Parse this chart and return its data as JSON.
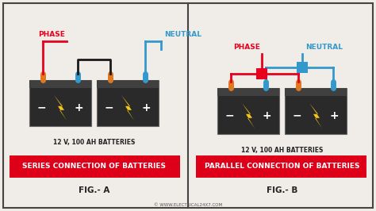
{
  "bg_color": "#f0ede8",
  "border_color": "#444444",
  "battery_color": "#2a2a2a",
  "battery_top_color": "#404040",
  "red_color": "#e8001c",
  "blue_color": "#3399cc",
  "black_color": "#1a1a1a",
  "orange_color": "#e07820",
  "label_box_color": "#dd0018",
  "watermark": "© WWW.ELECTRICAL24X7.COM",
  "left_title": "SERIES CONNECTION OF BATTERIES",
  "right_title": "PARALLEL CONNECTION OF BATTERIES",
  "left_fig": "FIG.- A",
  "right_fig": "FIG.- B",
  "battery_label": "12 V, 100 AH BATTERIES",
  "phase_label": "PHASE",
  "neutral_label": "NEUTRAL"
}
